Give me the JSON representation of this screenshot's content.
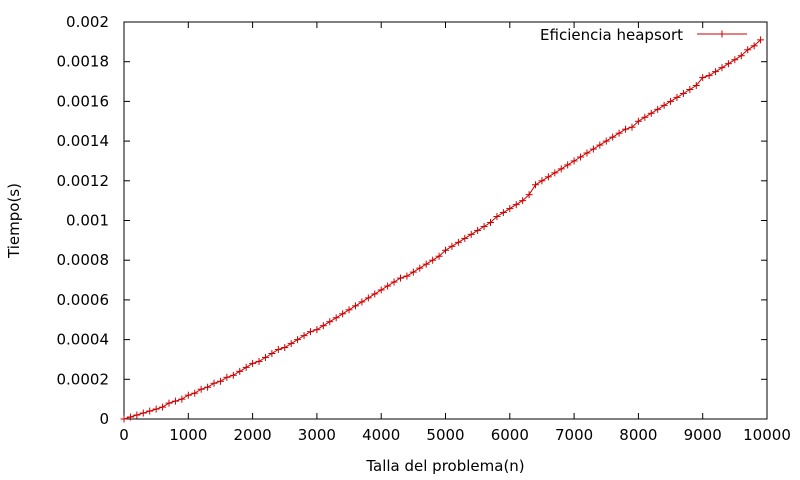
{
  "chart_data": {
    "type": "line",
    "title": "",
    "xlabel": "Talla del problema(n)",
    "ylabel": "Tiempo(s)",
    "xlim": [
      0,
      10000
    ],
    "ylim": [
      0,
      0.002
    ],
    "xticks": [
      0,
      1000,
      2000,
      3000,
      4000,
      5000,
      6000,
      7000,
      8000,
      9000,
      10000
    ],
    "yticks": [
      0,
      0.0002,
      0.0004,
      0.0006,
      0.0008,
      0.001,
      0.0012,
      0.0014,
      0.0016,
      0.0018,
      0.002
    ],
    "xtick_labels": [
      "0",
      "1000",
      "2000",
      "3000",
      "4000",
      "5000",
      "6000",
      "7000",
      "8000",
      "9000",
      "10000"
    ],
    "ytick_labels": [
      "0",
      "0.0002",
      "0.0004",
      "0.0006",
      "0.0008",
      "0.001",
      "0.0012",
      "0.0014",
      "0.0016",
      "0.0018",
      "0.002"
    ],
    "grid": false,
    "legend": "top-right",
    "line_color": "#cc0000",
    "marker": "plus",
    "series": [
      {
        "name": "Eficiencia heapsort",
        "x": [
          0,
          100,
          200,
          300,
          400,
          500,
          600,
          700,
          800,
          900,
          1000,
          1100,
          1200,
          1300,
          1400,
          1500,
          1600,
          1700,
          1800,
          1900,
          2000,
          2100,
          2200,
          2300,
          2400,
          2500,
          2600,
          2700,
          2800,
          2900,
          3000,
          3100,
          3200,
          3300,
          3400,
          3500,
          3600,
          3700,
          3800,
          3900,
          4000,
          4100,
          4200,
          4300,
          4400,
          4500,
          4600,
          4700,
          4800,
          4900,
          5000,
          5100,
          5200,
          5300,
          5400,
          5500,
          5600,
          5700,
          5800,
          5900,
          6000,
          6100,
          6200,
          6300,
          6400,
          6500,
          6600,
          6700,
          6800,
          6900,
          7000,
          7100,
          7200,
          7300,
          7400,
          7500,
          7600,
          7700,
          7800,
          7900,
          8000,
          8100,
          8200,
          8300,
          8400,
          8500,
          8600,
          8700,
          8800,
          8900,
          9000,
          9100,
          9200,
          9300,
          9400,
          9500,
          9600,
          9700,
          9800,
          9900
        ],
        "values": [
          0,
          1e-05,
          2e-05,
          3e-05,
          4e-05,
          5e-05,
          6e-05,
          8e-05,
          9e-05,
          0.0001,
          0.00012,
          0.00013,
          0.00015,
          0.00016,
          0.00018,
          0.00019,
          0.00021,
          0.00022,
          0.00024,
          0.00026,
          0.00028,
          0.00029,
          0.00031,
          0.00033,
          0.00035,
          0.00036,
          0.00038,
          0.0004,
          0.00042,
          0.00044,
          0.00045,
          0.00047,
          0.00049,
          0.00051,
          0.00053,
          0.00055,
          0.00057,
          0.00059,
          0.00061,
          0.00063,
          0.00065,
          0.00067,
          0.00069,
          0.00071,
          0.00072,
          0.00074,
          0.00076,
          0.00078,
          0.0008,
          0.00082,
          0.00085,
          0.00087,
          0.00089,
          0.00091,
          0.00093,
          0.00095,
          0.00097,
          0.00099,
          0.00102,
          0.00104,
          0.00106,
          0.00108,
          0.0011,
          0.00113,
          0.00118,
          0.0012,
          0.00122,
          0.00124,
          0.00126,
          0.00128,
          0.0013,
          0.00132,
          0.00134,
          0.00136,
          0.00138,
          0.0014,
          0.00142,
          0.00144,
          0.00146,
          0.00147,
          0.0015,
          0.00152,
          0.00154,
          0.00156,
          0.00158,
          0.0016,
          0.00162,
          0.00164,
          0.00166,
          0.00168,
          0.00172,
          0.00173,
          0.00175,
          0.00177,
          0.00179,
          0.00181,
          0.00183,
          0.00186,
          0.00188,
          0.00191
        ]
      }
    ]
  }
}
